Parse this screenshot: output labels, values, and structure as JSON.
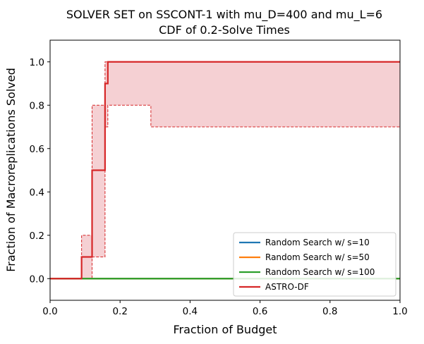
{
  "chart_data": {
    "type": "line",
    "title_line1": "SOLVER SET on SSCONT-1 with mu_D=400 and mu_L=6",
    "title_line2": "CDF of 0.2-Solve Times",
    "xlabel": "Fraction of Budget",
    "ylabel": "Fraction of Macroreplications Solved",
    "xlim": [
      0,
      1
    ],
    "ylim": [
      -0.1,
      1.1
    ],
    "xticks": [
      0.0,
      0.2,
      0.4,
      0.6,
      0.8,
      1.0
    ],
    "xtick_labels": [
      "0.0",
      "0.2",
      "0.4",
      "0.6",
      "0.8",
      "1.0"
    ],
    "yticks": [
      0.0,
      0.2,
      0.4,
      0.6,
      0.8,
      1.0
    ],
    "ytick_labels": [
      "0.0",
      "0.2",
      "0.4",
      "0.6",
      "0.8",
      "1.0"
    ],
    "legend_position": "lower-right",
    "series": [
      {
        "name": "Random Search w/ s=10",
        "color": "#1f77b4",
        "x": [
          0,
          1
        ],
        "y": [
          0,
          0
        ]
      },
      {
        "name": "Random Search w/ s=50",
        "color": "#ff7f0e",
        "x": [
          0,
          1
        ],
        "y": [
          0,
          0
        ]
      },
      {
        "name": "Random Search w/ s=100",
        "color": "#2ca02c",
        "x": [
          0,
          1
        ],
        "y": [
          0,
          0
        ]
      },
      {
        "name": "ASTRO-DF",
        "color": "#d62728",
        "x": [
          0,
          0.09,
          0.09,
          0.12,
          0.12,
          0.157,
          0.157,
          0.165,
          0.165,
          1.0
        ],
        "y": [
          0,
          0,
          0.1,
          0.1,
          0.5,
          0.5,
          0.9,
          0.9,
          1.0,
          1.0
        ],
        "ci_upper": {
          "x": [
            0,
            0.09,
            0.09,
            0.12,
            0.12,
            0.157,
            0.157,
            1.0
          ],
          "y": [
            0,
            0,
            0.2,
            0.2,
            0.8,
            0.8,
            1.0,
            1.0
          ]
        },
        "ci_lower": {
          "x": [
            0,
            0.12,
            0.12,
            0.157,
            0.157,
            0.165,
            0.165,
            0.288,
            0.288,
            1.0
          ],
          "y": [
            0,
            0,
            0.1,
            0.1,
            0.7,
            0.7,
            0.8,
            0.8,
            0.7,
            0.7
          ]
        },
        "ci_fill": "#f5d0d3"
      }
    ]
  }
}
